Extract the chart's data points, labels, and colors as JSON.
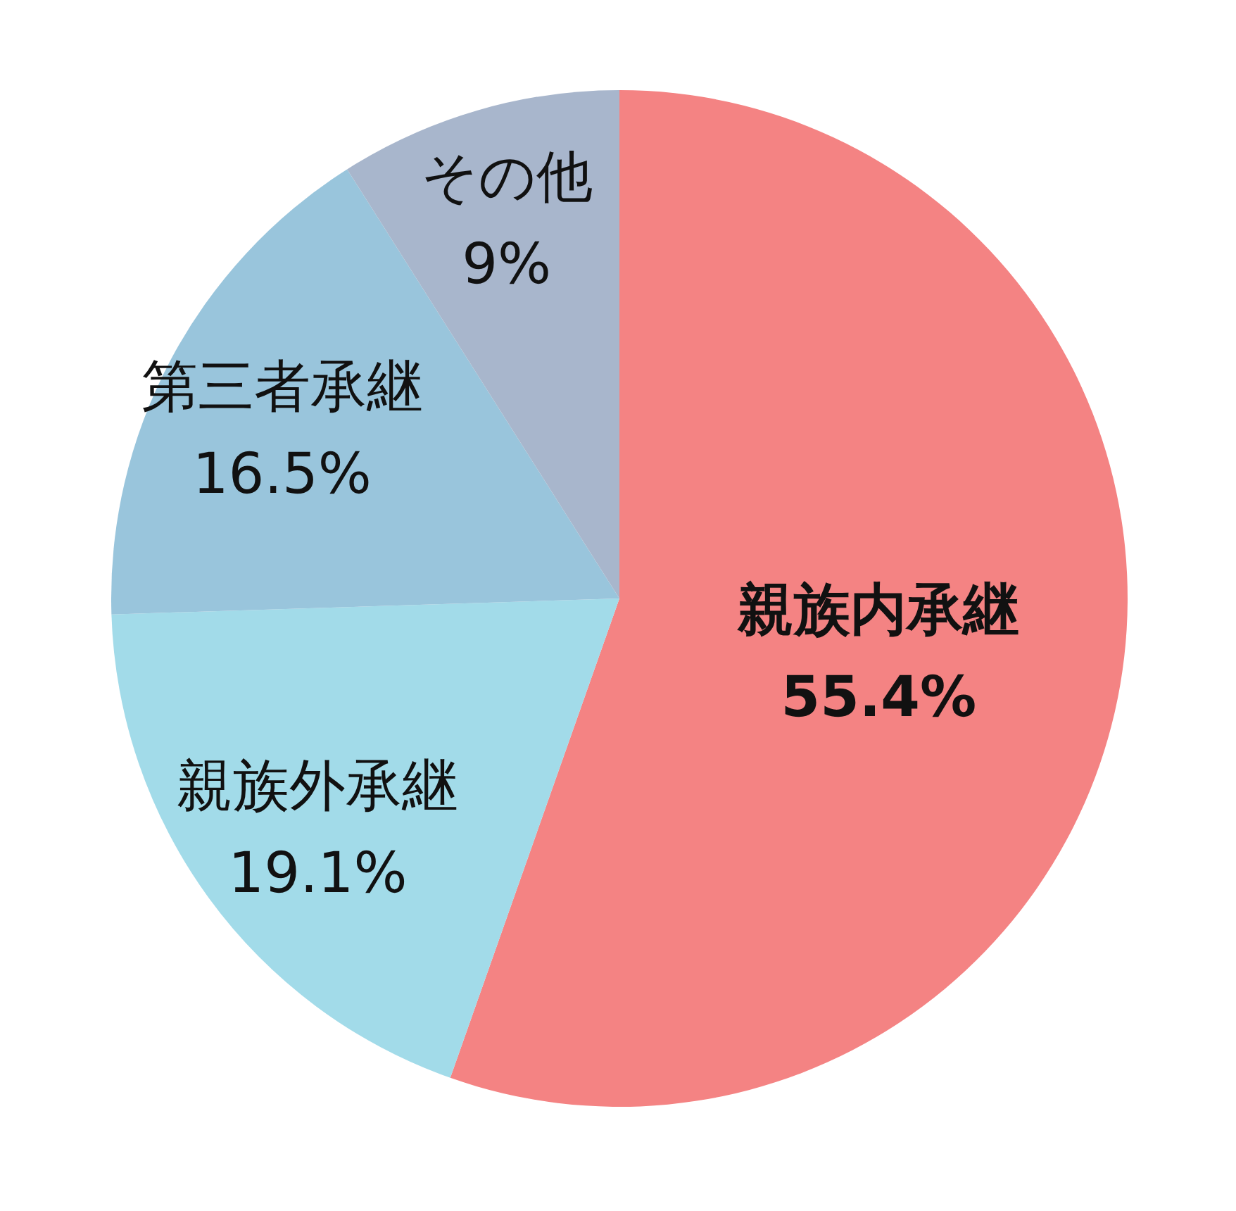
{
  "chart_data": {
    "type": "pie",
    "categories": [
      "親族内承継",
      "親族外承継",
      "第三者承継",
      "その他"
    ],
    "values": [
      55.4,
      19.1,
      16.5,
      9
    ],
    "value_labels": [
      "55.4%",
      "19.1%",
      "16.5%",
      "9%"
    ],
    "colors": [
      "#f48383",
      "#a2dbe9",
      "#99c5dc",
      "#a8b6cc"
    ]
  }
}
